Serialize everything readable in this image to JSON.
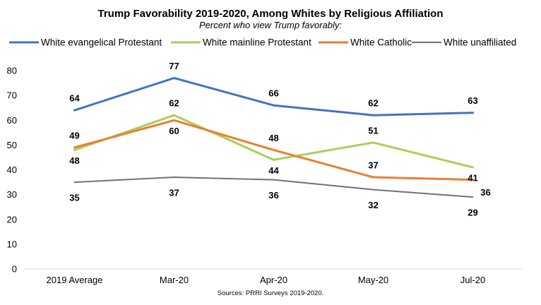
{
  "chart_data": {
    "type": "line",
    "title": "Trump Favorability 2019-2020, Among Whites by Religious Affiliation",
    "subtitle": "Percent who view Trump favorably:",
    "source": "Sources: PRRI Surveys 2019-2020.",
    "categories": [
      "2019 Average",
      "Mar-20",
      "Apr-20",
      "May-20",
      "Jul-20"
    ],
    "ylim": [
      0,
      80
    ],
    "yticks": [
      0,
      10,
      20,
      30,
      40,
      50,
      60,
      70,
      80
    ],
    "grid": false,
    "legend_position": "top",
    "series": [
      {
        "name": "White evangelical Protestant",
        "color": "#4472C4",
        "values": [
          64,
          77,
          66,
          62,
          63
        ],
        "labels": [
          "64",
          "77",
          "66",
          "62",
          "63"
        ]
      },
      {
        "name": "White mainline Protestant",
        "color": "#A9D05A",
        "values": [
          48,
          62,
          44,
          51,
          41
        ],
        "labels": [
          "48",
          "62",
          "44",
          "51",
          "41"
        ]
      },
      {
        "name": "White Catholic",
        "color": "#ED7D31",
        "values": [
          49,
          60,
          48,
          37,
          36
        ],
        "labels": [
          "49",
          "60",
          "48",
          "37",
          "36"
        ]
      },
      {
        "name": "White unaffiliated",
        "color": "#767171",
        "values": [
          35,
          37,
          36,
          32,
          29
        ],
        "labels": [
          "35",
          "37",
          "36",
          "32",
          "29"
        ]
      }
    ]
  }
}
